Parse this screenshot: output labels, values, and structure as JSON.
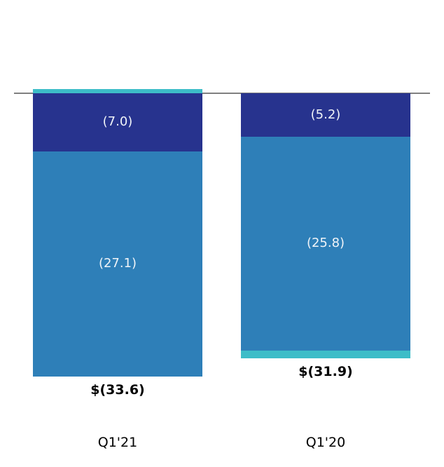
{
  "chart_data": {
    "type": "bar",
    "stacked": true,
    "orientation": "vertical",
    "title": "",
    "categories": [
      "Q1'21",
      "Q1'20"
    ],
    "baseline": 0,
    "grid": false,
    "legend": false,
    "ylim": [
      -35,
      1
    ],
    "series": [
      {
        "name": "navy",
        "color": "#27338e",
        "values": [
          -7.0,
          -5.2
        ]
      },
      {
        "name": "blue",
        "color": "#2e7fb8",
        "values": [
          -27.1,
          -25.8
        ]
      },
      {
        "name": "teal",
        "color": "#3dbdc8",
        "values": [
          0.5,
          -0.9
        ]
      }
    ],
    "bars": [
      {
        "category": "Q1'21",
        "total_value": -33.6,
        "total_label": "$(33.6)",
        "segments": [
          {
            "name": "teal",
            "value": 0.5,
            "label": "",
            "color": "#3dbdc8"
          },
          {
            "name": "navy",
            "value": -7.0,
            "label": "(7.0)",
            "color": "#27338e"
          },
          {
            "name": "blue",
            "value": -27.1,
            "label": "(27.1)",
            "color": "#2e7fb8"
          }
        ]
      },
      {
        "category": "Q1'20",
        "total_value": -31.9,
        "total_label": "$(31.9)",
        "segments": [
          {
            "name": "navy",
            "value": -5.2,
            "label": "(5.2)",
            "color": "#27338e"
          },
          {
            "name": "blue",
            "value": -25.8,
            "label": "(25.8)",
            "color": "#2e7fb8"
          },
          {
            "name": "teal",
            "value": -0.9,
            "label": "",
            "color": "#3dbdc8"
          }
        ]
      }
    ],
    "colors": {
      "navy": "#27338e",
      "blue": "#2e7fb8",
      "teal": "#3dbdc8",
      "axis_line": "#808080",
      "label_on_bar": "#f0f4f8",
      "text": "#000000"
    }
  }
}
